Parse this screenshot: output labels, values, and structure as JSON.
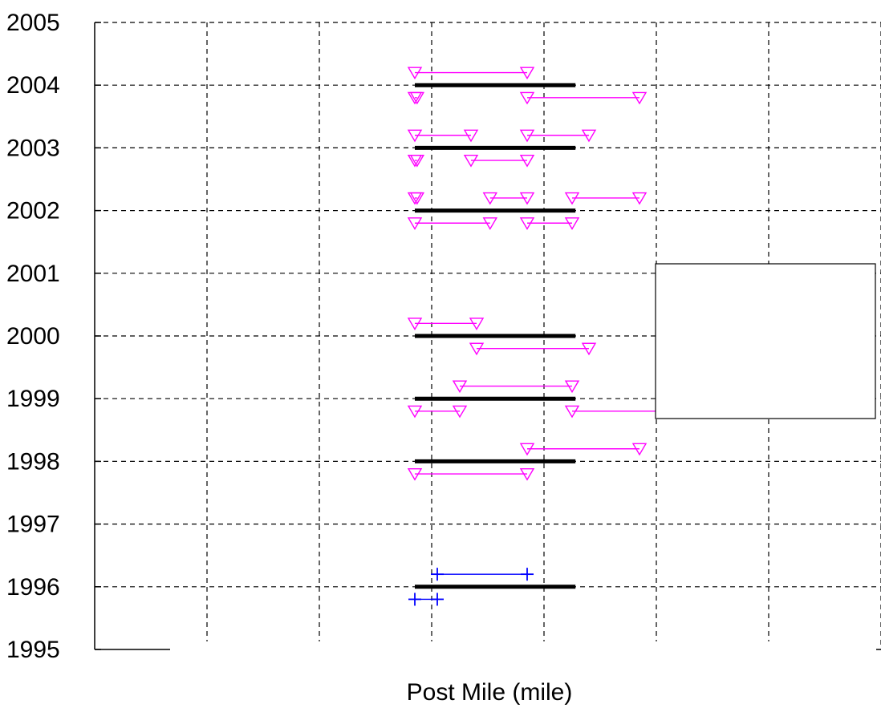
{
  "chart_data": {
    "type": "line",
    "title": "",
    "xlabel": "Post Mile (mile)",
    "ylabel": "",
    "xlim": [
      0,
      7
    ],
    "ylim": [
      1995,
      2005
    ],
    "x_tick_values": [
      0,
      1,
      2,
      3,
      4,
      5,
      6,
      7
    ],
    "y_ticks": [
      "1995",
      "1996",
      "1997",
      "1998",
      "1999",
      "2000",
      "2001",
      "2002",
      "2003",
      "2004",
      "2005"
    ],
    "grid": true,
    "legend": {
      "placement": "right",
      "entries": []
    },
    "series": [
      {
        "style": "bold-bar",
        "color": "#000000",
        "segments": [
          {
            "x": [
              2.85,
              4.28
            ],
            "y": 1996.0
          },
          {
            "x": [
              2.85,
              4.28
            ],
            "y": 1998.0
          },
          {
            "x": [
              2.85,
              4.28
            ],
            "y": 1999.0
          },
          {
            "x": [
              2.85,
              4.28
            ],
            "y": 2000.0
          },
          {
            "x": [
              2.85,
              4.28
            ],
            "y": 2002.0
          },
          {
            "x": [
              2.85,
              4.28
            ],
            "y": 2003.0
          },
          {
            "x": [
              2.85,
              4.28
            ],
            "y": 2004.0
          }
        ]
      },
      {
        "style": "triangle-line",
        "color": "#ff00ff",
        "segments": [
          {
            "x": [
              2.85,
              3.85
            ],
            "y": 2004.2
          },
          {
            "x": [
              2.85,
              2.87
            ],
            "y": 2003.8
          },
          {
            "x": [
              3.85,
              4.85
            ],
            "y": 2003.8
          },
          {
            "x": [
              2.85,
              3.35
            ],
            "y": 2003.2
          },
          {
            "x": [
              3.85,
              4.4
            ],
            "y": 2003.2
          },
          {
            "x": [
              2.85,
              2.87
            ],
            "y": 2002.8
          },
          {
            "x": [
              3.35,
              3.85
            ],
            "y": 2002.8
          },
          {
            "x": [
              2.85,
              2.87
            ],
            "y": 2002.2
          },
          {
            "x": [
              3.52,
              3.85
            ],
            "y": 2002.2
          },
          {
            "x": [
              4.25,
              4.85
            ],
            "y": 2002.2
          },
          {
            "x": [
              2.85,
              3.52
            ],
            "y": 2001.8
          },
          {
            "x": [
              3.85,
              4.25
            ],
            "y": 2001.8
          },
          {
            "x": [
              2.85,
              3.4
            ],
            "y": 2000.2
          },
          {
            "x": [
              3.4,
              4.4
            ],
            "y": 1999.8
          },
          {
            "x": [
              3.25,
              4.25
            ],
            "y": 1999.2
          },
          {
            "x": [
              2.85,
              3.25
            ],
            "y": 1998.8
          },
          {
            "x": [
              4.25,
              5.5
            ],
            "y": 1998.8
          },
          {
            "x": [
              3.85,
              4.85
            ],
            "y": 1998.2
          },
          {
            "x": [
              2.85,
              3.85
            ],
            "y": 1997.8
          }
        ]
      },
      {
        "style": "plus-line",
        "color": "#0000ff",
        "segments": [
          {
            "x": [
              3.05,
              3.85
            ],
            "y": 1996.2
          },
          {
            "x": [
              2.85,
              3.05
            ],
            "y": 1995.8
          }
        ]
      }
    ]
  }
}
